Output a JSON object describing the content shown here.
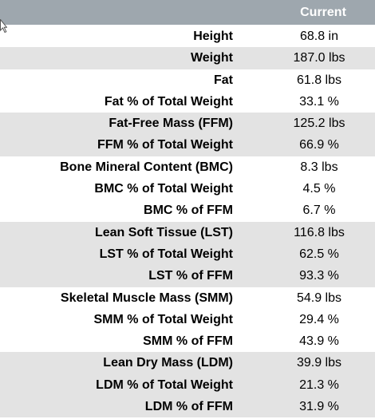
{
  "header": {
    "current_label": "Current"
  },
  "rows": [
    {
      "label": "Height",
      "value": "68.8 in",
      "shaded": false
    },
    {
      "label": "Weight",
      "value": "187.0 lbs",
      "shaded": true
    },
    {
      "label": "Fat",
      "value": "61.8 lbs",
      "shaded": false
    },
    {
      "label": "Fat % of Total Weight",
      "value": "33.1 %",
      "shaded": false
    },
    {
      "label": "Fat-Free Mass (FFM)",
      "value": "125.2 lbs",
      "shaded": true
    },
    {
      "label": "FFM % of Total Weight",
      "value": "66.9 %",
      "shaded": true
    },
    {
      "label": "Bone Mineral Content (BMC)",
      "value": "8.3 lbs",
      "shaded": false
    },
    {
      "label": "BMC % of Total Weight",
      "value": "4.5 %",
      "shaded": false
    },
    {
      "label": "BMC % of FFM",
      "value": "6.7 %",
      "shaded": false
    },
    {
      "label": "Lean Soft Tissue (LST)",
      "value": "116.8 lbs",
      "shaded": true
    },
    {
      "label": "LST % of Total Weight",
      "value": "62.5 %",
      "shaded": true
    },
    {
      "label": "LST % of FFM",
      "value": "93.3 %",
      "shaded": true
    },
    {
      "label": "Skeletal Muscle Mass (SMM)",
      "value": "54.9 lbs",
      "shaded": false
    },
    {
      "label": "SMM % of Total Weight",
      "value": "29.4 %",
      "shaded": false
    },
    {
      "label": "SMM % of FFM",
      "value": "43.9 %",
      "shaded": false
    },
    {
      "label": "Lean Dry Mass (LDM)",
      "value": "39.9 lbs",
      "shaded": true
    },
    {
      "label": "LDM % of Total Weight",
      "value": "21.3 %",
      "shaded": true
    },
    {
      "label": "LDM % of FFM",
      "value": "31.9 %",
      "shaded": true
    }
  ],
  "colors": {
    "header_bg": "#9ea7ae",
    "shaded_row_bg": "#e3e3e3",
    "header_text": "#ffffff"
  },
  "icons": {
    "cursor": "mouse-pointer-icon"
  }
}
